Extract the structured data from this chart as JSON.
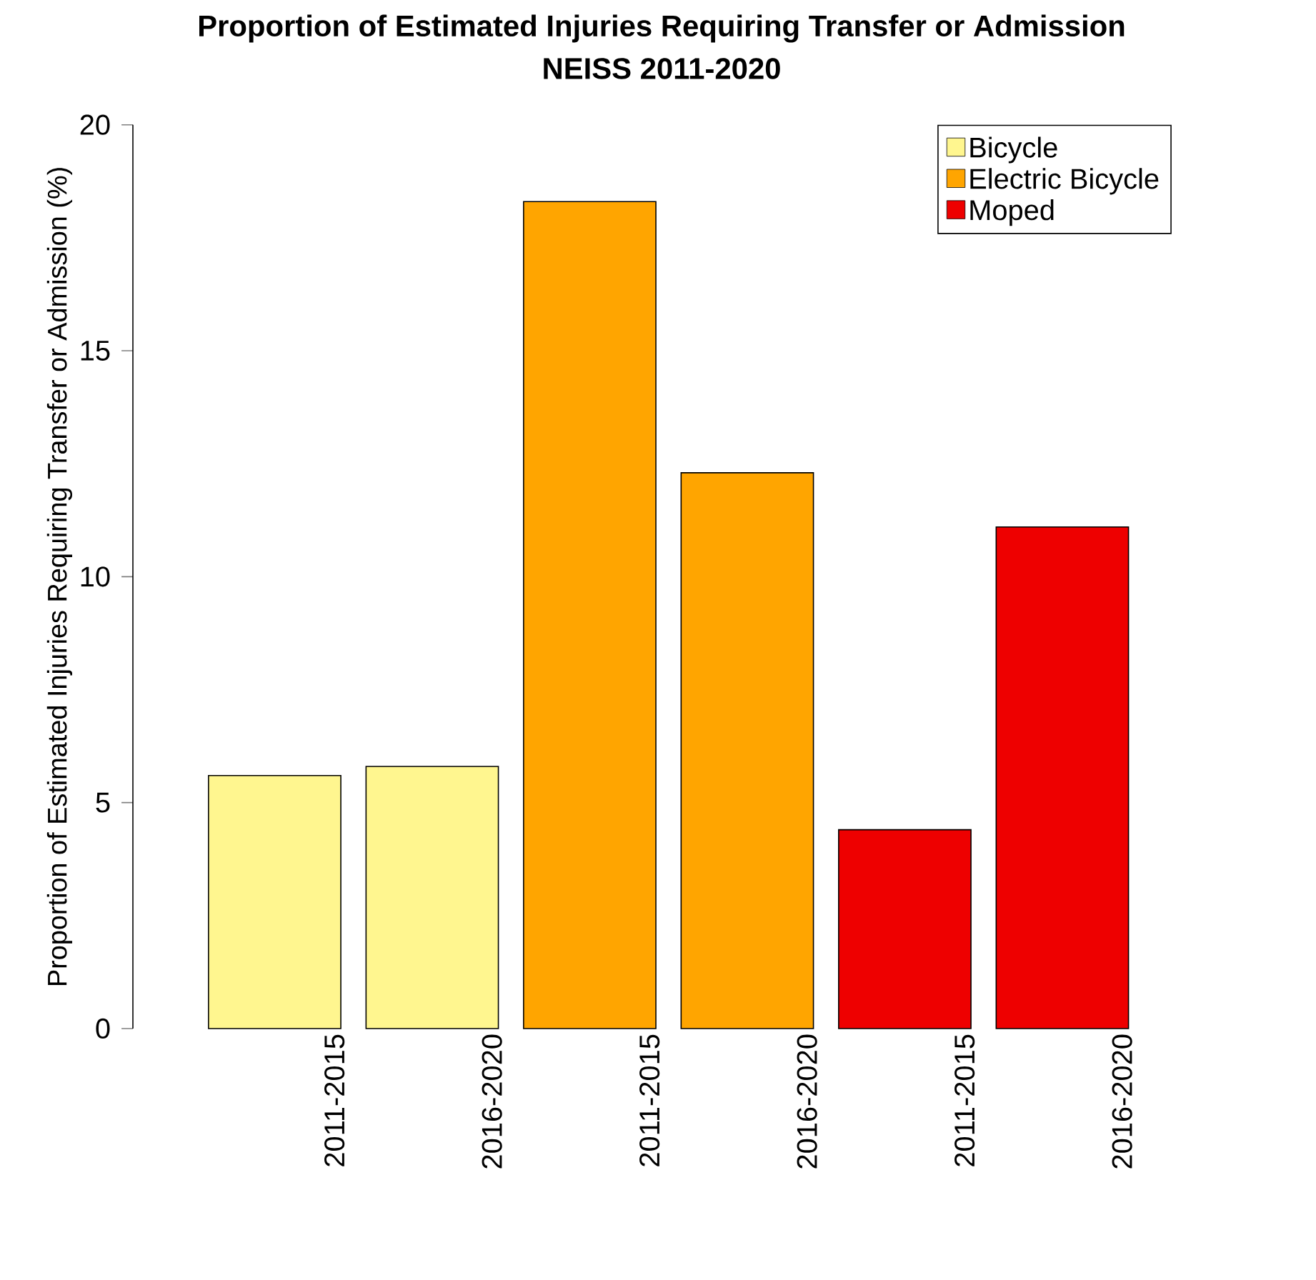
{
  "chart_data": {
    "type": "bar",
    "title": "Proportion of Estimated Injuries Requiring Transfer or Admission",
    "subtitle": "NEISS 2011-2020",
    "ylabel": "Proportion of Estimated Injuries Requiring Transfer or Admission (%)",
    "categories": [
      "2011-2015",
      "2016-2020",
      "2011-2015",
      "2016-2020",
      "2011-2015",
      "2016-2020"
    ],
    "series": [
      {
        "name": "Bicycle",
        "color": "#fff68f",
        "values": [
          5.6,
          5.8,
          null,
          null,
          null,
          null
        ]
      },
      {
        "name": "Electric Bicycle",
        "color": "#ffa500",
        "values": [
          null,
          null,
          18.3,
          12.3,
          null,
          null
        ]
      },
      {
        "name": "Moped",
        "color": "#ee0000",
        "values": [
          null,
          null,
          null,
          null,
          4.4,
          11.1
        ]
      }
    ],
    "ylim": [
      0,
      20
    ],
    "yticks": [
      0,
      5,
      10,
      15,
      20
    ],
    "grid": false,
    "legend": "top right"
  }
}
